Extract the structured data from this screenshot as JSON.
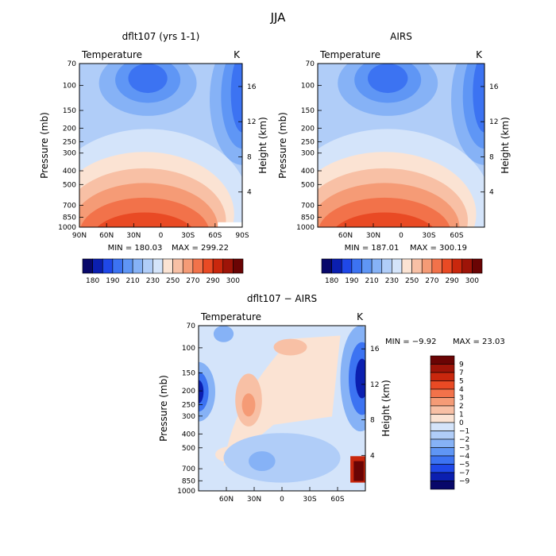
{
  "page_title": "JJA",
  "chart_data": [
    {
      "type": "heatmap",
      "id": "model",
      "title": "dflt107 (yrs 1-1)",
      "variable": "Temperature",
      "units": "K",
      "ylabel": "Pressure (mb)",
      "ylabel_right": "Height (km)",
      "pressure_ticks": [
        "70",
        "100",
        "150",
        "200",
        "250",
        "300",
        "400",
        "500",
        "700",
        "850",
        "1000"
      ],
      "height_ticks": [
        "16",
        "12",
        "8",
        "4"
      ],
      "lat_ticks": [
        "90N",
        "60N",
        "30N",
        "0",
        "30S",
        "60S",
        "90S"
      ],
      "min_text": "MIN = 180.03",
      "max_text": "MAX = 299.22",
      "colorbar_labels": [
        "180",
        "190",
        "210",
        "230",
        "250",
        "270",
        "290",
        "300"
      ]
    },
    {
      "type": "heatmap",
      "id": "obs",
      "title": "AIRS",
      "variable": "Temperature",
      "units": "K",
      "ylabel": "Pressure (mb)",
      "ylabel_right": "Height (km)",
      "pressure_ticks": [
        "70",
        "100",
        "150",
        "200",
        "250",
        "300",
        "400",
        "500",
        "700",
        "850",
        "1000"
      ],
      "height_ticks": [
        "16",
        "12",
        "8",
        "4"
      ],
      "lat_ticks": [
        "60N",
        "30N",
        "0",
        "30S",
        "60S"
      ],
      "min_text": "MIN = 187.01",
      "max_text": "MAX = 300.19",
      "colorbar_labels": [
        "180",
        "190",
        "210",
        "230",
        "250",
        "270",
        "290",
        "300"
      ]
    },
    {
      "type": "heatmap",
      "id": "diff",
      "title": "dflt107 − AIRS",
      "variable": "Temperature",
      "units": "K",
      "ylabel": "Pressure (mb)",
      "ylabel_right": "Height (km)",
      "pressure_ticks": [
        "70",
        "100",
        "150",
        "200",
        "250",
        "300",
        "400",
        "500",
        "700",
        "850",
        "1000"
      ],
      "height_ticks": [
        "16",
        "12",
        "8",
        "4"
      ],
      "lat_ticks": [
        "60N",
        "30N",
        "0",
        "30S",
        "60S"
      ],
      "min_text": "MIN = −9.92",
      "max_text": "MAX = 23.03",
      "colorbar_labels": [
        "9",
        "7",
        "5",
        "4",
        "3",
        "2",
        "1",
        "0",
        "−1",
        "−2",
        "−3",
        "−4",
        "−5",
        "−7",
        "−9"
      ]
    }
  ],
  "colors": {
    "abs_scale": [
      "#08086a",
      "#0b1fb0",
      "#1f48e8",
      "#3c73f2",
      "#5f96f5",
      "#86b2f6",
      "#b0cdf8",
      "#d4e4fa",
      "#fbe3d3",
      "#f8c0a5",
      "#f59b76",
      "#f2724a",
      "#e94a24",
      "#c9270d",
      "#9e1408",
      "#6a0404"
    ],
    "diff_scale": [
      "#6a0404",
      "#9e1408",
      "#c9270d",
      "#e94a24",
      "#f2724a",
      "#f59b76",
      "#f8c0a5",
      "#fbe3d3",
      "#d4e4fa",
      "#b0cdf8",
      "#86b2f6",
      "#5f96f5",
      "#3c73f2",
      "#1f48e8",
      "#0b1fb0",
      "#08086a"
    ]
  }
}
